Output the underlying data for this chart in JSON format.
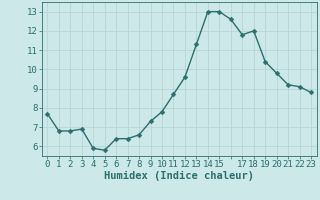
{
  "x": [
    0,
    1,
    2,
    3,
    4,
    5,
    6,
    7,
    8,
    9,
    10,
    11,
    12,
    13,
    14,
    15,
    16,
    17,
    18,
    19,
    20,
    21,
    22,
    23
  ],
  "y": [
    7.7,
    6.8,
    6.8,
    6.9,
    5.9,
    5.8,
    6.4,
    6.4,
    6.6,
    7.3,
    7.8,
    8.7,
    9.6,
    11.3,
    13.0,
    13.0,
    12.6,
    11.8,
    12.0,
    10.4,
    9.8,
    9.2,
    9.1,
    8.8
  ],
  "line_color": "#2d6e6e",
  "bg_color": "#cce8e8",
  "grid_color": "#b8d4d4",
  "xlabel": "Humidex (Indice chaleur)",
  "xlim": [
    -0.5,
    23.5
  ],
  "ylim": [
    5.5,
    13.5
  ],
  "yticks": [
    6,
    7,
    8,
    9,
    10,
    11,
    12,
    13
  ],
  "xticks": [
    0,
    1,
    2,
    3,
    4,
    5,
    6,
    7,
    8,
    9,
    10,
    11,
    12,
    13,
    14,
    15,
    16,
    17,
    18,
    19,
    20,
    21,
    22,
    23
  ],
  "xtick_labels": [
    "0",
    "1",
    "2",
    "3",
    "4",
    "5",
    "6",
    "7",
    "8",
    "9",
    "10",
    "11",
    "12",
    "13",
    "14",
    "15",
    "",
    "17",
    "18",
    "19",
    "20",
    "21",
    "22",
    "23"
  ],
  "marker_size": 2.5,
  "line_width": 1.0,
  "tick_fontsize": 6.5,
  "xlabel_fontsize": 7.5
}
